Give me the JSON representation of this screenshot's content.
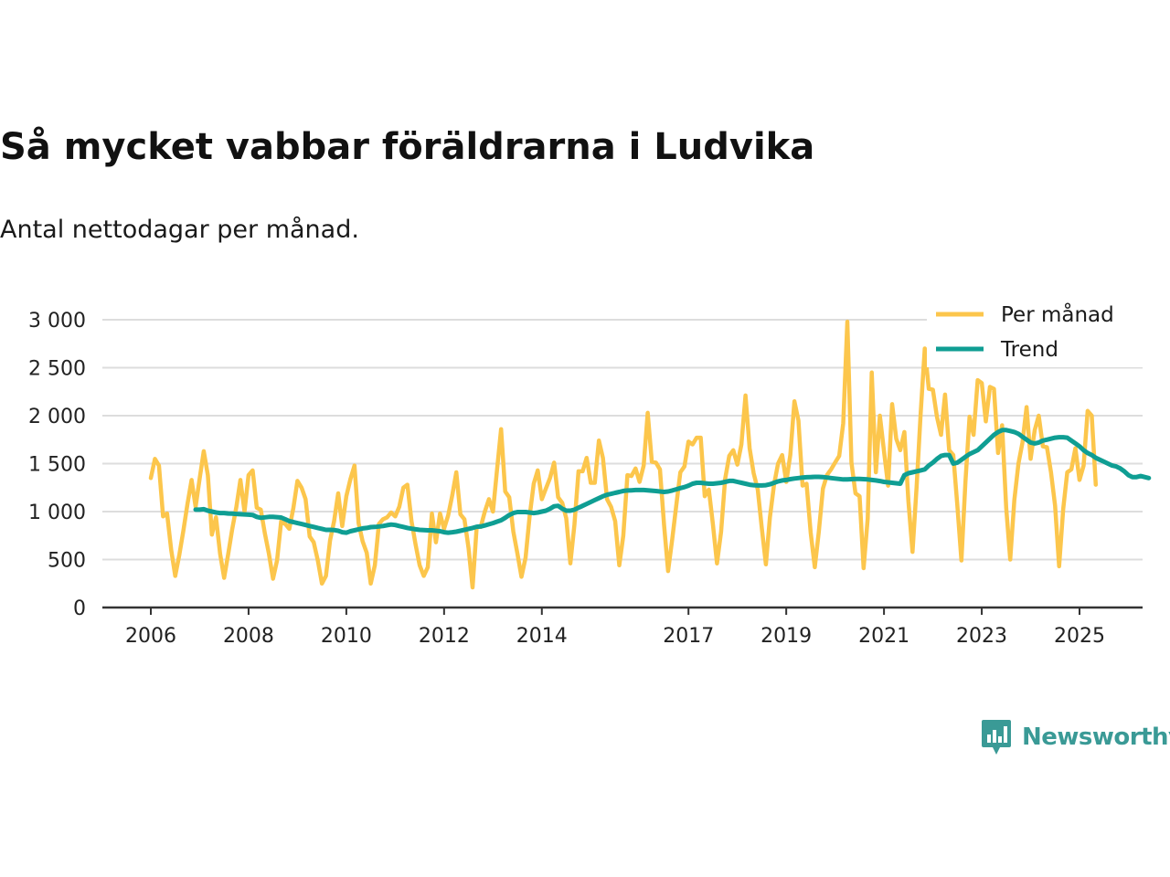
{
  "chart_data": {
    "type": "line",
    "title": "Så mycket vabbar föräldrarna i Ludvika",
    "subtitle": "Antal nettodagar per månad.",
    "xlabel": "",
    "ylabel": "",
    "ylim": [
      0,
      3000
    ],
    "yticks": [
      0,
      500,
      1000,
      1500,
      2000,
      2500,
      3000
    ],
    "ytick_labels": [
      "0",
      "500",
      "1 000",
      "1 500",
      "2 000",
      "2 500",
      "3 000"
    ],
    "xlim": [
      2006,
      2026.3
    ],
    "xticks": [
      2006,
      2008,
      2010,
      2012,
      2014,
      2017,
      2019,
      2021,
      2023,
      2025
    ],
    "xtick_labels": [
      "2006",
      "2008",
      "2010",
      "2012",
      "2014",
      "2017",
      "2019",
      "2021",
      "2023",
      "2025"
    ],
    "grid": true,
    "legend_position": "top-right",
    "colors": {
      "monthly": "#fcc64c",
      "trend": "#0f9e93",
      "grid": "#dddddd",
      "axis": "#333333"
    },
    "series": [
      {
        "name": "Per månad",
        "start": 2006.0,
        "step": 0.0833333,
        "values": [
          1350,
          1550,
          1480,
          950,
          980,
          600,
          330,
          550,
          800,
          1080,
          1330,
          1050,
          1350,
          1630,
          1380,
          760,
          940,
          560,
          310,
          560,
          820,
          1050,
          1330,
          1000,
          1380,
          1430,
          1040,
          1020,
          770,
          560,
          300,
          490,
          900,
          870,
          820,
          1040,
          1320,
          1250,
          1130,
          740,
          680,
          490,
          250,
          330,
          700,
          900,
          1190,
          850,
          1160,
          1340,
          1480,
          880,
          690,
          570,
          250,
          440,
          870,
          920,
          940,
          990,
          950,
          1050,
          1250,
          1280,
          900,
          660,
          440,
          330,
          420,
          980,
          680,
          980,
          820,
          960,
          1170,
          1410,
          970,
          920,
          620,
          210,
          840,
          840,
          1000,
          1130,
          1000,
          1440,
          1860,
          1210,
          1150,
          790,
          560,
          320,
          520,
          950,
          1290,
          1430,
          1130,
          1240,
          1350,
          1510,
          1150,
          1090,
          930,
          460,
          860,
          1420,
          1420,
          1560,
          1300,
          1300,
          1740,
          1560,
          1130,
          1050,
          900,
          440,
          750,
          1380,
          1370,
          1450,
          1310,
          1480,
          2030,
          1520,
          1510,
          1440,
          860,
          380,
          710,
          1060,
          1410,
          1470,
          1730,
          1700,
          1770,
          1770,
          1160,
          1230,
          870,
          460,
          790,
          1340,
          1580,
          1640,
          1490,
          1700,
          2210,
          1660,
          1400,
          1230,
          830,
          450,
          940,
          1280,
          1500,
          1590,
          1310,
          1590,
          2150,
          1950,
          1270,
          1290,
          780,
          420,
          790,
          1240,
          1380,
          1440,
          1510,
          1580,
          1920,
          2980,
          1510,
          1190,
          1160,
          410,
          930,
          2450,
          1410,
          2000,
          1630,
          1270,
          2120,
          1760,
          1640,
          1830,
          1110,
          580,
          1260,
          2020,
          2700,
          2280,
          2270,
          1990,
          1800,
          2220,
          1640,
          1590,
          1070,
          490,
          1310,
          1990,
          1800,
          2370,
          2340,
          1940,
          2300,
          2280,
          1610,
          1900,
          1040,
          500,
          1120,
          1500,
          1720,
          2090,
          1550,
          1850,
          2000,
          1680,
          1670,
          1410,
          1060,
          430,
          1030,
          1410,
          1440,
          1660,
          1330,
          1480,
          2050,
          2000,
          1280
        ]
      },
      {
        "name": "Trend",
        "start": 2006.917,
        "step": 0.0833333,
        "values": [
          1020,
          1020,
          1025,
          1010,
          1000,
          990,
          985,
          985,
          980,
          978,
          975,
          972,
          970,
          968,
          965,
          945,
          935,
          940,
          945,
          945,
          942,
          938,
          920,
          900,
          890,
          880,
          870,
          860,
          850,
          840,
          830,
          820,
          810,
          810,
          808,
          800,
          785,
          780,
          795,
          805,
          815,
          825,
          830,
          838,
          840,
          845,
          850,
          858,
          865,
          860,
          850,
          840,
          830,
          822,
          815,
          810,
          808,
          805,
          805,
          800,
          795,
          785,
          780,
          785,
          790,
          800,
          810,
          820,
          830,
          842,
          845,
          855,
          868,
          880,
          895,
          910,
          935,
          965,
          985,
          995,
          995,
          995,
          990,
          985,
          990,
          1000,
          1010,
          1030,
          1055,
          1060,
          1030,
          1010,
          1010,
          1020,
          1040,
          1060,
          1080,
          1100,
          1120,
          1140,
          1160,
          1175,
          1185,
          1195,
          1205,
          1215,
          1220,
          1222,
          1225,
          1225,
          1225,
          1222,
          1218,
          1214,
          1210,
          1205,
          1210,
          1220,
          1232,
          1245,
          1255,
          1270,
          1290,
          1300,
          1300,
          1295,
          1290,
          1290,
          1295,
          1300,
          1310,
          1320,
          1320,
          1310,
          1300,
          1290,
          1280,
          1275,
          1272,
          1272,
          1275,
          1285,
          1300,
          1315,
          1325,
          1330,
          1338,
          1345,
          1350,
          1355,
          1358,
          1360,
          1362,
          1362,
          1360,
          1355,
          1350,
          1345,
          1340,
          1335,
          1335,
          1338,
          1340,
          1340,
          1338,
          1335,
          1330,
          1325,
          1318,
          1310,
          1305,
          1300,
          1295,
          1290,
          1380,
          1400,
          1410,
          1420,
          1430,
          1440,
          1480,
          1510,
          1550,
          1580,
          1590,
          1590,
          1500,
          1510,
          1540,
          1570,
          1600,
          1620,
          1640,
          1680,
          1720,
          1760,
          1800,
          1830,
          1850,
          1850,
          1840,
          1830,
          1810,
          1780,
          1750,
          1720,
          1710,
          1720,
          1740,
          1750,
          1760,
          1770,
          1775,
          1775,
          1770,
          1740,
          1710,
          1680,
          1640,
          1610,
          1590,
          1560,
          1540,
          1520,
          1500,
          1480,
          1470,
          1450,
          1420,
          1380,
          1360,
          1360,
          1370,
          1360,
          1350
        ]
      }
    ]
  },
  "brand": {
    "name": "Newsworthy",
    "color": "#3a9a96"
  }
}
